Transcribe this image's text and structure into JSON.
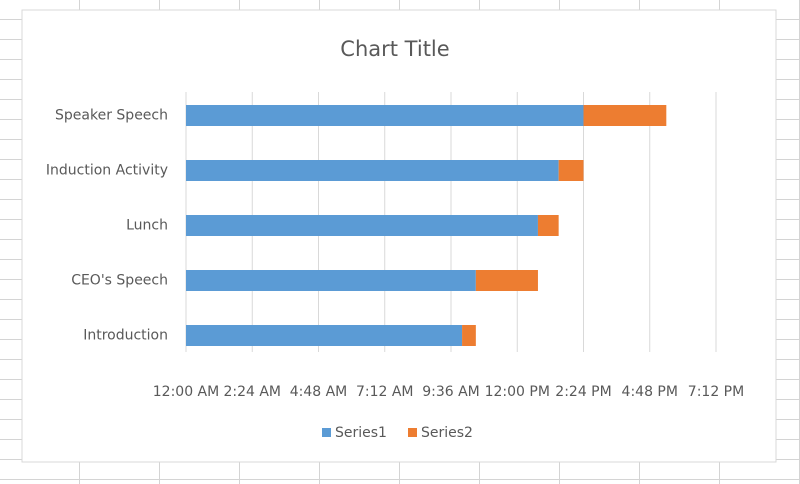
{
  "chart_data": {
    "type": "stacked-bar-horizontal",
    "title": "Chart Title",
    "categories": [
      "Speaker Speech",
      "Induction Activity",
      "Lunch",
      "CEO's Speech",
      "Introduction"
    ],
    "series": [
      {
        "name": "Series1",
        "color": "#5b9bd5",
        "values": [
          0.6,
          0.5625,
          0.53125,
          0.4375,
          0.4167
        ]
      },
      {
        "name": "Series2",
        "color": "#ed7d31",
        "values": [
          0.125,
          0.0375,
          0.03125,
          0.09375,
          0.0208
        ]
      }
    ],
    "xlim": [
      0,
      0.8
    ],
    "xticks": [
      {
        "value": 0,
        "label": "12:00 AM"
      },
      {
        "value": 0.1,
        "label": "2:24 AM"
      },
      {
        "value": 0.2,
        "label": "4:48 AM"
      },
      {
        "value": 0.3,
        "label": "7:12 AM"
      },
      {
        "value": 0.4,
        "label": "9:36 AM"
      },
      {
        "value": 0.5,
        "label": "12:00 PM"
      },
      {
        "value": 0.6,
        "label": "2:24 PM"
      },
      {
        "value": 0.7,
        "label": "4:48 PM"
      },
      {
        "value": 0.8,
        "label": "7:12 PM"
      }
    ],
    "grid": true,
    "legend": "bottom"
  }
}
